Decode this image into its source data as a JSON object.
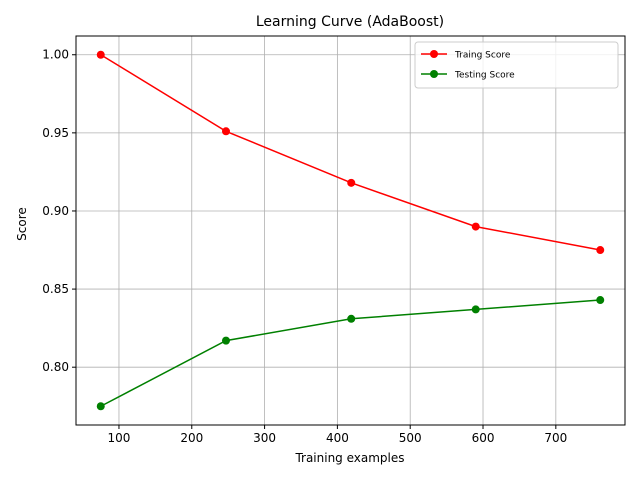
{
  "chart_data": {
    "type": "line",
    "title": "Learning Curve (AdaBoost)",
    "xlabel": "Training examples",
    "ylabel": "Score",
    "xlim": [
      41,
      795
    ],
    "ylim": [
      0.763,
      1.012
    ],
    "xticks": [
      100,
      200,
      300,
      400,
      500,
      600,
      700
    ],
    "yticks": [
      0.8,
      0.85,
      0.9,
      0.95,
      1.0
    ],
    "xtick_labels": [
      "100",
      "200",
      "300",
      "400",
      "500",
      "600",
      "700"
    ],
    "ytick_labels": [
      "0.80",
      "0.85",
      "0.90",
      "0.95",
      "1.00"
    ],
    "grid": true,
    "legend_position": "top-right",
    "x": [
      75,
      247,
      419,
      590,
      761
    ],
    "series": [
      {
        "name": "Traing Score",
        "color": "#ff0000",
        "values": [
          1.0,
          0.951,
          0.918,
          0.89,
          0.875
        ]
      },
      {
        "name": "Testing Score",
        "color": "#008000",
        "values": [
          0.775,
          0.817,
          0.831,
          0.837,
          0.843
        ]
      }
    ]
  }
}
